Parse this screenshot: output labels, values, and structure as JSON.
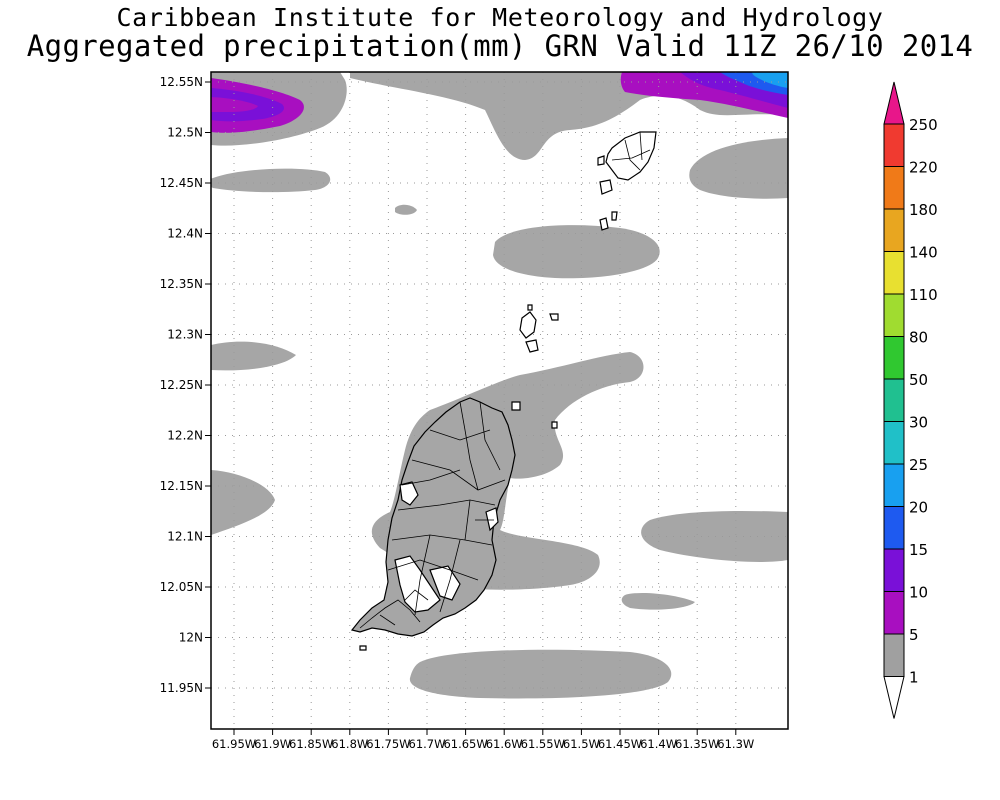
{
  "header": {
    "institute": "Caribbean Institute for Meteorology and Hydrology",
    "product": "Aggregated precipitation(mm) GRN Valid 11Z 26/10 2014"
  },
  "map": {
    "region": "Grenada and the Grenadines",
    "lat_ticks": [
      "12.55N",
      "12.5N",
      "12.45N",
      "12.4N",
      "12.35N",
      "12.3N",
      "12.25N",
      "12.2N",
      "12.15N",
      "12.1N",
      "12.05N",
      "12N",
      "11.95N"
    ],
    "lon_ticks": [
      "61.95W",
      "61.9W",
      "61.85W",
      "61.8W",
      "61.75W",
      "61.7W",
      "61.65W",
      "61.6W",
      "61.55W",
      "61.5W",
      "61.45W",
      "61.4W",
      "61.35W",
      "61.3W"
    ],
    "grid": true
  },
  "legend": {
    "title": "",
    "levels": [
      "250",
      "220",
      "180",
      "140",
      "110",
      "80",
      "50",
      "30",
      "25",
      "20",
      "15",
      "10",
      "5",
      "1"
    ],
    "colors": [
      "#e8168a",
      "#f03a30",
      "#f07a18",
      "#e8a620",
      "#e8e030",
      "#a0dc30",
      "#30c830",
      "#20c090",
      "#20c0c8",
      "#18a0f0",
      "#1e5af0",
      "#7a10d8",
      "#a80fc0",
      "#a0a0a0",
      "#ffffff"
    ]
  }
}
